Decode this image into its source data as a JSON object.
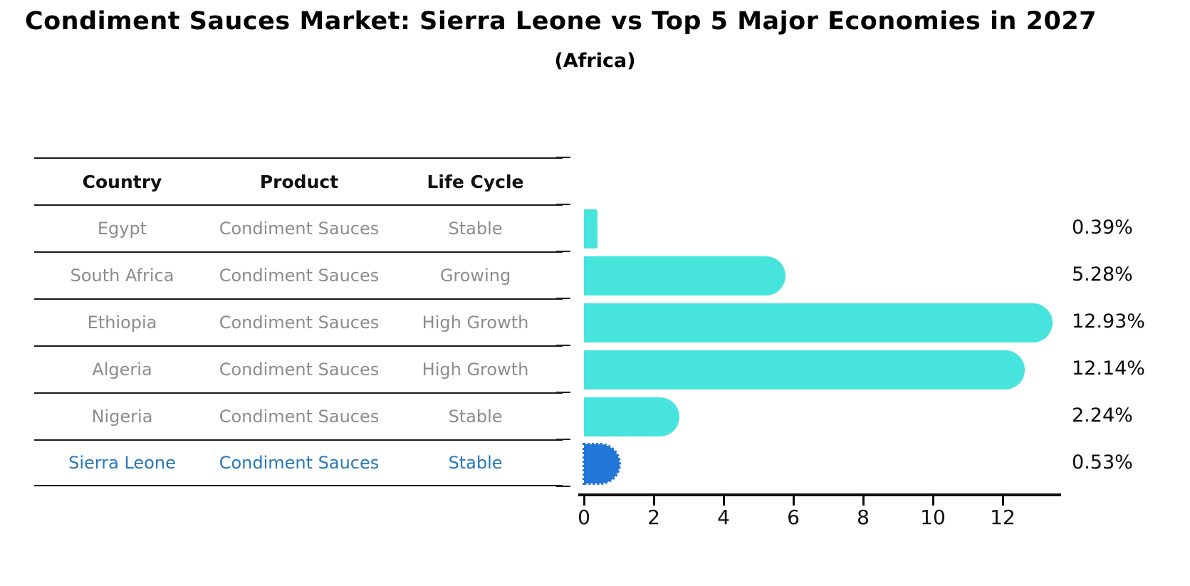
{
  "title": "Condiment Sauces Market: Sierra Leone vs Top 5 Major Economies in 2027",
  "subtitle": "(Africa)",
  "table": {
    "headers": [
      "Country",
      "Product",
      "Life Cycle"
    ],
    "rows": [
      {
        "country": "Egypt",
        "product": "Condiment Sauces",
        "life_cycle": "Stable",
        "highlight": false
      },
      {
        "country": "South Africa",
        "product": "Condiment Sauces",
        "life_cycle": "Growing",
        "highlight": false
      },
      {
        "country": "Ethiopia",
        "product": "Condiment Sauces",
        "life_cycle": "High Growth",
        "highlight": false
      },
      {
        "country": "Algeria",
        "product": "Condiment Sauces",
        "life_cycle": "High Growth",
        "highlight": false
      },
      {
        "country": "Nigeria",
        "product": "Condiment Sauces",
        "life_cycle": "Stable",
        "highlight": false
      },
      {
        "country": "Sierra Leone",
        "product": "Condiment Sauces",
        "life_cycle": "Stable",
        "highlight": true
      }
    ]
  },
  "chart_data": {
    "type": "bar",
    "orientation": "horizontal",
    "title": "Condiment Sauces Market: Sierra Leone vs Top 5 Major Economies in 2027",
    "subtitle": "(Africa)",
    "categories": [
      "Egypt",
      "South Africa",
      "Ethiopia",
      "Algeria",
      "Nigeria",
      "Sierra Leone"
    ],
    "values": [
      0.39,
      5.28,
      12.93,
      12.14,
      2.24,
      0.53
    ],
    "value_labels": [
      "0.39%",
      "5.28%",
      "12.93%",
      "12.14%",
      "2.24%",
      "0.53%"
    ],
    "x_ticks": [
      0,
      2,
      4,
      6,
      8,
      10,
      12
    ],
    "xlim": [
      0,
      13.6
    ],
    "grid": false,
    "legend": "none",
    "highlight_index": 5,
    "bar_color": "#47e4dd",
    "highlight_color": "#2176d8",
    "highlight_text_color": "#2777bd"
  }
}
